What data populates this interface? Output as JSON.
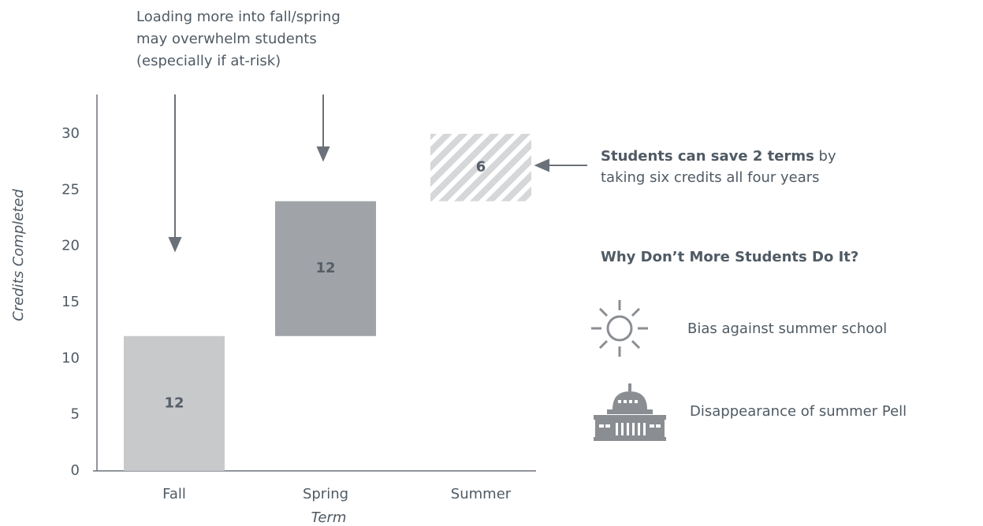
{
  "chart_data": {
    "type": "waterfall",
    "categories": [
      "Fall",
      "Spring",
      "Summer"
    ],
    "values": [
      12,
      12,
      6
    ],
    "colors": [
      "#c8c9cb",
      "#a0a3a8",
      "#d6d7d9"
    ],
    "hatched": [
      false,
      false,
      true
    ],
    "ylim": [
      0,
      33.5
    ],
    "yticks": [
      0,
      5,
      10,
      15,
      20,
      25,
      30
    ],
    "ylabel": "Credits Completed",
    "xlabel": "Term",
    "annotation": [
      "Loading more into fall/spring",
      "may overwhelm students",
      "(especially if at-risk)"
    ],
    "callout": {
      "bold": "Students can save 2 terms",
      "rest": " by",
      "line2": "taking six credits all four years"
    },
    "heading": "Why Don’t More Students Do It?",
    "reasons": [
      "Bias against summer school",
      "Disappearance of summer Pell"
    ]
  }
}
